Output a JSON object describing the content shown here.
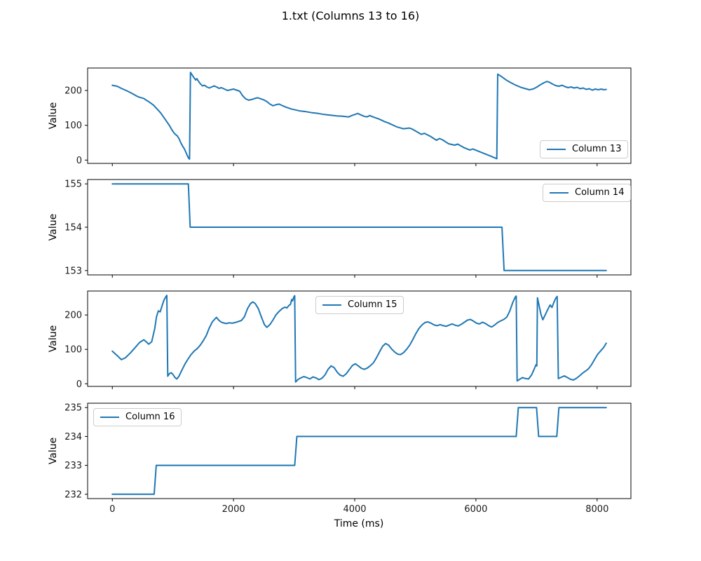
{
  "title": "1.txt (Columns 13 to 16)",
  "xlabel": "Time (ms)",
  "accent_color": "#1f77b4",
  "xticks": [
    0,
    2000,
    4000,
    6000,
    8000
  ],
  "x_range_ms": [
    0,
    8150
  ],
  "chart_data": [
    {
      "type": "line",
      "name": "Column 13",
      "legend": "Column 13",
      "legend_position": "lower right",
      "ylabel": "Value",
      "yticks": [
        0,
        100,
        200
      ],
      "color": "#1f77b4",
      "points": [
        [
          0,
          215
        ],
        [
          80,
          212
        ],
        [
          160,
          205
        ],
        [
          240,
          199
        ],
        [
          320,
          192
        ],
        [
          400,
          184
        ],
        [
          440,
          181
        ],
        [
          480,
          179
        ],
        [
          520,
          177
        ],
        [
          560,
          172
        ],
        [
          600,
          168
        ],
        [
          640,
          163
        ],
        [
          680,
          158
        ],
        [
          720,
          150
        ],
        [
          760,
          143
        ],
        [
          800,
          135
        ],
        [
          840,
          125
        ],
        [
          880,
          115
        ],
        [
          920,
          105
        ],
        [
          950,
          97
        ],
        [
          980,
          88
        ],
        [
          1010,
          80
        ],
        [
          1040,
          74
        ],
        [
          1070,
          70
        ],
        [
          1100,
          62
        ],
        [
          1130,
          50
        ],
        [
          1160,
          40
        ],
        [
          1190,
          32
        ],
        [
          1220,
          20
        ],
        [
          1240,
          12
        ],
        [
          1260,
          5
        ],
        [
          1275,
          3
        ],
        [
          1290,
          252
        ],
        [
          1320,
          244
        ],
        [
          1350,
          236
        ],
        [
          1375,
          230
        ],
        [
          1395,
          234
        ],
        [
          1415,
          228
        ],
        [
          1440,
          222
        ],
        [
          1465,
          217
        ],
        [
          1490,
          213
        ],
        [
          1520,
          215
        ],
        [
          1560,
          210
        ],
        [
          1600,
          207
        ],
        [
          1640,
          210
        ],
        [
          1680,
          213
        ],
        [
          1720,
          210
        ],
        [
          1760,
          206
        ],
        [
          1800,
          208
        ],
        [
          1850,
          204
        ],
        [
          1900,
          200
        ],
        [
          1950,
          202
        ],
        [
          2000,
          204
        ],
        [
          2050,
          201
        ],
        [
          2100,
          198
        ],
        [
          2150,
          185
        ],
        [
          2200,
          176
        ],
        [
          2250,
          172
        ],
        [
          2300,
          174
        ],
        [
          2350,
          177
        ],
        [
          2400,
          179
        ],
        [
          2450,
          176
        ],
        [
          2500,
          173
        ],
        [
          2550,
          168
        ],
        [
          2600,
          161
        ],
        [
          2650,
          156
        ],
        [
          2700,
          159
        ],
        [
          2750,
          161
        ],
        [
          2800,
          157
        ],
        [
          2850,
          153
        ],
        [
          2900,
          150
        ],
        [
          2950,
          147
        ],
        [
          3000,
          145
        ],
        [
          3100,
          141
        ],
        [
          3200,
          139
        ],
        [
          3300,
          136
        ],
        [
          3400,
          134
        ],
        [
          3500,
          131
        ],
        [
          3600,
          129
        ],
        [
          3700,
          127
        ],
        [
          3800,
          126
        ],
        [
          3900,
          124
        ],
        [
          3950,
          128
        ],
        [
          4000,
          131
        ],
        [
          4050,
          134
        ],
        [
          4100,
          130
        ],
        [
          4150,
          126
        ],
        [
          4200,
          124
        ],
        [
          4250,
          128
        ],
        [
          4300,
          124
        ],
        [
          4400,
          118
        ],
        [
          4500,
          110
        ],
        [
          4550,
          107
        ],
        [
          4600,
          103
        ],
        [
          4700,
          95
        ],
        [
          4800,
          90
        ],
        [
          4900,
          92
        ],
        [
          4950,
          89
        ],
        [
          5000,
          84
        ],
        [
          5100,
          74
        ],
        [
          5150,
          77
        ],
        [
          5250,
          68
        ],
        [
          5350,
          57
        ],
        [
          5400,
          62
        ],
        [
          5450,
          58
        ],
        [
          5550,
          47
        ],
        [
          5650,
          43
        ],
        [
          5700,
          46
        ],
        [
          5800,
          36
        ],
        [
          5900,
          29
        ],
        [
          5950,
          32
        ],
        [
          6050,
          25
        ],
        [
          6150,
          18
        ],
        [
          6250,
          11
        ],
        [
          6330,
          5
        ],
        [
          6345,
          4
        ],
        [
          6360,
          247
        ],
        [
          6420,
          240
        ],
        [
          6500,
          230
        ],
        [
          6580,
          222
        ],
        [
          6660,
          215
        ],
        [
          6740,
          209
        ],
        [
          6820,
          205
        ],
        [
          6880,
          202
        ],
        [
          6940,
          204
        ],
        [
          7000,
          209
        ],
        [
          7060,
          216
        ],
        [
          7120,
          222
        ],
        [
          7170,
          226
        ],
        [
          7220,
          223
        ],
        [
          7270,
          218
        ],
        [
          7320,
          214
        ],
        [
          7370,
          212
        ],
        [
          7420,
          215
        ],
        [
          7470,
          211
        ],
        [
          7520,
          208
        ],
        [
          7570,
          210
        ],
        [
          7620,
          207
        ],
        [
          7670,
          209
        ],
        [
          7720,
          205
        ],
        [
          7770,
          207
        ],
        [
          7820,
          203
        ],
        [
          7870,
          205
        ],
        [
          7920,
          201
        ],
        [
          7970,
          204
        ],
        [
          8020,
          202
        ],
        [
          8070,
          204
        ],
        [
          8110,
          202
        ],
        [
          8150,
          203
        ]
      ]
    },
    {
      "type": "line",
      "name": "Column 14",
      "legend": "Column 14",
      "legend_position": "upper right",
      "ylabel": "Value",
      "yticks": [
        153,
        154,
        155
      ],
      "color": "#1f77b4",
      "points": [
        [
          0,
          155
        ],
        [
          1255,
          155
        ],
        [
          1285,
          154
        ],
        [
          6430,
          154
        ],
        [
          6465,
          153
        ],
        [
          8150,
          153
        ]
      ]
    },
    {
      "type": "line",
      "name": "Column 15",
      "legend": "Column 15",
      "legend_position": "upper center",
      "ylabel": "Value",
      "yticks": [
        0,
        100,
        200
      ],
      "color": "#1f77b4",
      "points": [
        [
          0,
          95
        ],
        [
          80,
          82
        ],
        [
          150,
          70
        ],
        [
          220,
          76
        ],
        [
          300,
          90
        ],
        [
          380,
          106
        ],
        [
          450,
          120
        ],
        [
          520,
          128
        ],
        [
          560,
          122
        ],
        [
          600,
          115
        ],
        [
          650,
          122
        ],
        [
          700,
          160
        ],
        [
          730,
          195
        ],
        [
          760,
          212
        ],
        [
          790,
          209
        ],
        [
          820,
          226
        ],
        [
          850,
          242
        ],
        [
          880,
          252
        ],
        [
          900,
          257
        ],
        [
          915,
          22
        ],
        [
          945,
          30
        ],
        [
          975,
          32
        ],
        [
          1005,
          26
        ],
        [
          1035,
          18
        ],
        [
          1065,
          14
        ],
        [
          1100,
          22
        ],
        [
          1150,
          40
        ],
        [
          1200,
          58
        ],
        [
          1250,
          72
        ],
        [
          1300,
          85
        ],
        [
          1350,
          95
        ],
        [
          1400,
          102
        ],
        [
          1450,
          112
        ],
        [
          1500,
          125
        ],
        [
          1550,
          140
        ],
        [
          1600,
          162
        ],
        [
          1650,
          180
        ],
        [
          1700,
          190
        ],
        [
          1720,
          193
        ],
        [
          1750,
          186
        ],
        [
          1790,
          180
        ],
        [
          1830,
          177
        ],
        [
          1880,
          175
        ],
        [
          1930,
          177
        ],
        [
          1980,
          176
        ],
        [
          2030,
          178
        ],
        [
          2080,
          181
        ],
        [
          2130,
          184
        ],
        [
          2180,
          195
        ],
        [
          2230,
          218
        ],
        [
          2280,
          233
        ],
        [
          2320,
          238
        ],
        [
          2360,
          233
        ],
        [
          2410,
          218
        ],
        [
          2460,
          194
        ],
        [
          2510,
          172
        ],
        [
          2550,
          164
        ],
        [
          2600,
          172
        ],
        [
          2650,
          185
        ],
        [
          2700,
          200
        ],
        [
          2750,
          210
        ],
        [
          2800,
          218
        ],
        [
          2850,
          223
        ],
        [
          2880,
          220
        ],
        [
          2910,
          227
        ],
        [
          2940,
          231
        ],
        [
          2960,
          245
        ],
        [
          2975,
          241
        ],
        [
          2995,
          252
        ],
        [
          3010,
          256
        ],
        [
          3025,
          5
        ],
        [
          3060,
          12
        ],
        [
          3110,
          17
        ],
        [
          3160,
          21
        ],
        [
          3210,
          18
        ],
        [
          3260,
          14
        ],
        [
          3310,
          20
        ],
        [
          3360,
          17
        ],
        [
          3410,
          12
        ],
        [
          3460,
          16
        ],
        [
          3510,
          26
        ],
        [
          3560,
          42
        ],
        [
          3610,
          52
        ],
        [
          3660,
          47
        ],
        [
          3710,
          34
        ],
        [
          3760,
          25
        ],
        [
          3810,
          22
        ],
        [
          3860,
          29
        ],
        [
          3910,
          41
        ],
        [
          3960,
          53
        ],
        [
          4010,
          58
        ],
        [
          4060,
          52
        ],
        [
          4110,
          45
        ],
        [
          4160,
          42
        ],
        [
          4210,
          46
        ],
        [
          4260,
          53
        ],
        [
          4310,
          61
        ],
        [
          4360,
          76
        ],
        [
          4410,
          93
        ],
        [
          4460,
          109
        ],
        [
          4510,
          117
        ],
        [
          4560,
          112
        ],
        [
          4610,
          101
        ],
        [
          4660,
          92
        ],
        [
          4710,
          86
        ],
        [
          4760,
          85
        ],
        [
          4810,
          91
        ],
        [
          4860,
          101
        ],
        [
          4910,
          113
        ],
        [
          4960,
          129
        ],
        [
          5010,
          146
        ],
        [
          5060,
          161
        ],
        [
          5110,
          171
        ],
        [
          5160,
          178
        ],
        [
          5210,
          180
        ],
        [
          5260,
          176
        ],
        [
          5310,
          171
        ],
        [
          5360,
          169
        ],
        [
          5410,
          172
        ],
        [
          5460,
          169
        ],
        [
          5510,
          167
        ],
        [
          5560,
          171
        ],
        [
          5610,
          174
        ],
        [
          5660,
          170
        ],
        [
          5710,
          168
        ],
        [
          5760,
          173
        ],
        [
          5810,
          179
        ],
        [
          5860,
          185
        ],
        [
          5910,
          187
        ],
        [
          5960,
          182
        ],
        [
          6010,
          176
        ],
        [
          6060,
          174
        ],
        [
          6110,
          179
        ],
        [
          6160,
          175
        ],
        [
          6210,
          169
        ],
        [
          6260,
          165
        ],
        [
          6310,
          171
        ],
        [
          6360,
          178
        ],
        [
          6410,
          183
        ],
        [
          6460,
          187
        ],
        [
          6510,
          194
        ],
        [
          6560,
          212
        ],
        [
          6610,
          237
        ],
        [
          6650,
          252
        ],
        [
          6665,
          255
        ],
        [
          6680,
          8
        ],
        [
          6720,
          13
        ],
        [
          6770,
          18
        ],
        [
          6820,
          15
        ],
        [
          6870,
          14
        ],
        [
          6920,
          26
        ],
        [
          6960,
          42
        ],
        [
          6990,
          55
        ],
        [
          7005,
          52
        ],
        [
          7015,
          250
        ],
        [
          7045,
          226
        ],
        [
          7075,
          201
        ],
        [
          7105,
          186
        ],
        [
          7145,
          201
        ],
        [
          7185,
          216
        ],
        [
          7225,
          229
        ],
        [
          7255,
          222
        ],
        [
          7285,
          236
        ],
        [
          7315,
          248
        ],
        [
          7340,
          254
        ],
        [
          7360,
          15
        ],
        [
          7410,
          19
        ],
        [
          7460,
          23
        ],
        [
          7510,
          18
        ],
        [
          7560,
          13
        ],
        [
          7610,
          11
        ],
        [
          7660,
          16
        ],
        [
          7710,
          23
        ],
        [
          7760,
          31
        ],
        [
          7810,
          37
        ],
        [
          7860,
          44
        ],
        [
          7910,
          56
        ],
        [
          7960,
          71
        ],
        [
          8010,
          86
        ],
        [
          8060,
          96
        ],
        [
          8110,
          106
        ],
        [
          8150,
          118
        ]
      ]
    },
    {
      "type": "line",
      "name": "Column 16",
      "legend": "Column 16",
      "legend_position": "upper left",
      "ylabel": "Value",
      "yticks": [
        232,
        233,
        234,
        235
      ],
      "color": "#1f77b4",
      "points": [
        [
          0,
          232
        ],
        [
          690,
          232
        ],
        [
          725,
          233
        ],
        [
          3010,
          233
        ],
        [
          3045,
          234
        ],
        [
          6665,
          234
        ],
        [
          6700,
          235
        ],
        [
          7000,
          235
        ],
        [
          7035,
          234
        ],
        [
          7335,
          234
        ],
        [
          7370,
          235
        ],
        [
          8150,
          235
        ]
      ]
    }
  ]
}
